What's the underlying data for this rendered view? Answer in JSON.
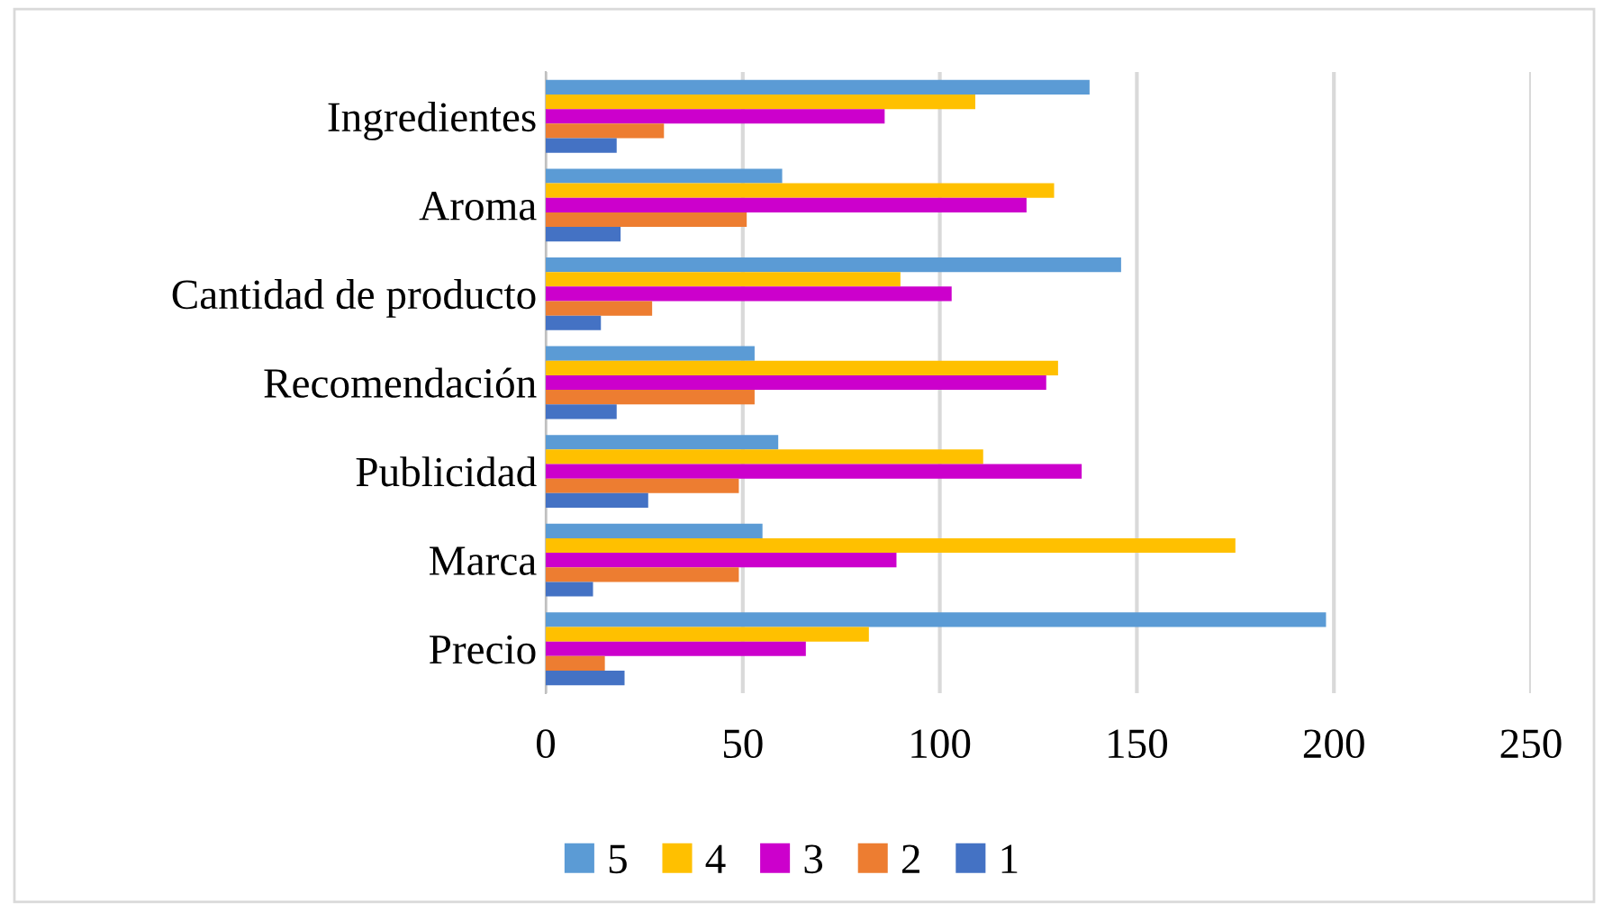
{
  "chart_data": {
    "type": "bar",
    "orientation": "horizontal",
    "categories": [
      "Ingredientes",
      "Aroma",
      "Cantidad de producto",
      "Recomendación",
      "Publicidad",
      "Marca",
      "Precio"
    ],
    "series": [
      {
        "name": "5",
        "color": "#5b9bd5",
        "values": [
          138,
          60,
          146,
          53,
          59,
          55,
          198
        ]
      },
      {
        "name": "4",
        "color": "#ffc000",
        "values": [
          109,
          129,
          90,
          130,
          111,
          175,
          82
        ]
      },
      {
        "name": "3",
        "color": "#cc00cc",
        "values": [
          86,
          122,
          103,
          127,
          136,
          89,
          66
        ]
      },
      {
        "name": "2",
        "color": "#ed7d31",
        "values": [
          30,
          51,
          27,
          53,
          49,
          49,
          15
        ]
      },
      {
        "name": "1",
        "color": "#4472c4",
        "values": [
          18,
          19,
          14,
          18,
          26,
          12,
          20
        ]
      }
    ],
    "xlim": [
      0,
      250
    ],
    "xticks": [
      0,
      50,
      100,
      150,
      200,
      250
    ],
    "grid": "x",
    "legend": "bottom"
  }
}
